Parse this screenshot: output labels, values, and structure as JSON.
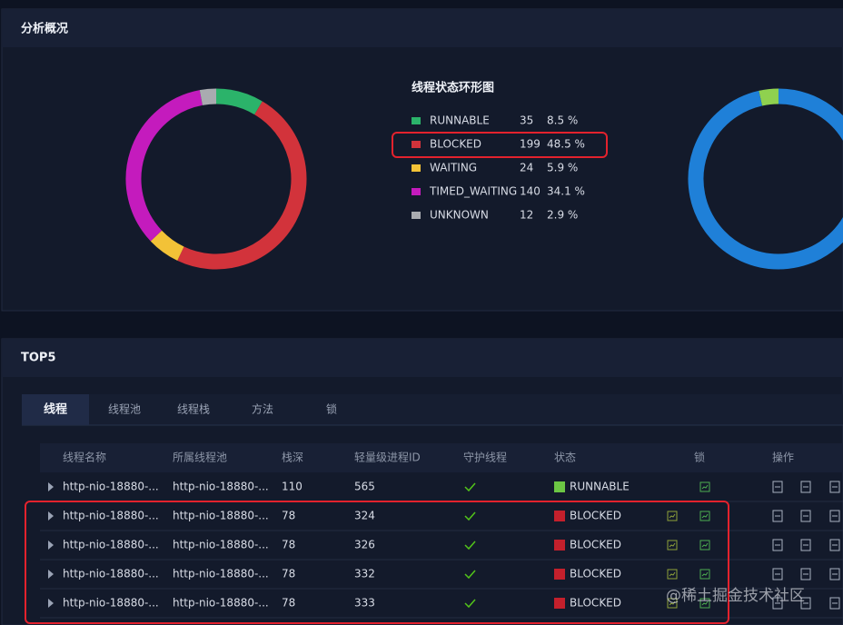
{
  "overview": {
    "title": "分析概况"
  },
  "donut": {
    "title": "线程状态环形图",
    "items": [
      {
        "name": "RUNNABLE",
        "color": "#2bb36a",
        "count": 35,
        "percent": "8.5 %"
      },
      {
        "name": "BLOCKED",
        "color": "#d2333b",
        "count": 199,
        "percent": "48.5 %"
      },
      {
        "name": "WAITING",
        "color": "#f3c237",
        "count": 24,
        "percent": "5.9 %"
      },
      {
        "name": "TIMED_WAITING",
        "color": "#c41bbd",
        "count": 140,
        "percent": "34.1 %"
      },
      {
        "name": "UNKNOWN",
        "color": "#a9abb0",
        "count": 12,
        "percent": "2.9 %"
      }
    ]
  },
  "donut2": {
    "segments": [
      {
        "color": "#8fd14f",
        "value": 3.5
      },
      {
        "color": "#1f80d8",
        "value": 96.5
      }
    ]
  },
  "top5": {
    "title": "TOP5",
    "tabs": [
      "线程",
      "线程池",
      "线程栈",
      "方法",
      "锁"
    ],
    "active_tab": 0,
    "table": {
      "headers": [
        "线程名称",
        "所属线程池",
        "栈深",
        "轻量级进程ID",
        "守护线程",
        "状态",
        "锁",
        "操作"
      ],
      "rows": [
        {
          "name": "http-nio-18880-...",
          "pool": "http-nio-18880-...",
          "depth": "110",
          "lwp": "565",
          "daemon": true,
          "status": "RUNNABLE",
          "status_color": "#6cc644"
        },
        {
          "name": "http-nio-18880-...",
          "pool": "http-nio-18880-...",
          "depth": "78",
          "lwp": "324",
          "daemon": true,
          "status": "BLOCKED",
          "status_color": "#c4202c"
        },
        {
          "name": "http-nio-18880-...",
          "pool": "http-nio-18880-...",
          "depth": "78",
          "lwp": "326",
          "daemon": true,
          "status": "BLOCKED",
          "status_color": "#c4202c"
        },
        {
          "name": "http-nio-18880-...",
          "pool": "http-nio-18880-...",
          "depth": "78",
          "lwp": "332",
          "daemon": true,
          "status": "BLOCKED",
          "status_color": "#c4202c"
        },
        {
          "name": "http-nio-18880-...",
          "pool": "http-nio-18880-...",
          "depth": "78",
          "lwp": "333",
          "daemon": true,
          "status": "BLOCKED",
          "status_color": "#c4202c"
        }
      ]
    }
  },
  "watermark": "@稀土掘金技术社区"
}
